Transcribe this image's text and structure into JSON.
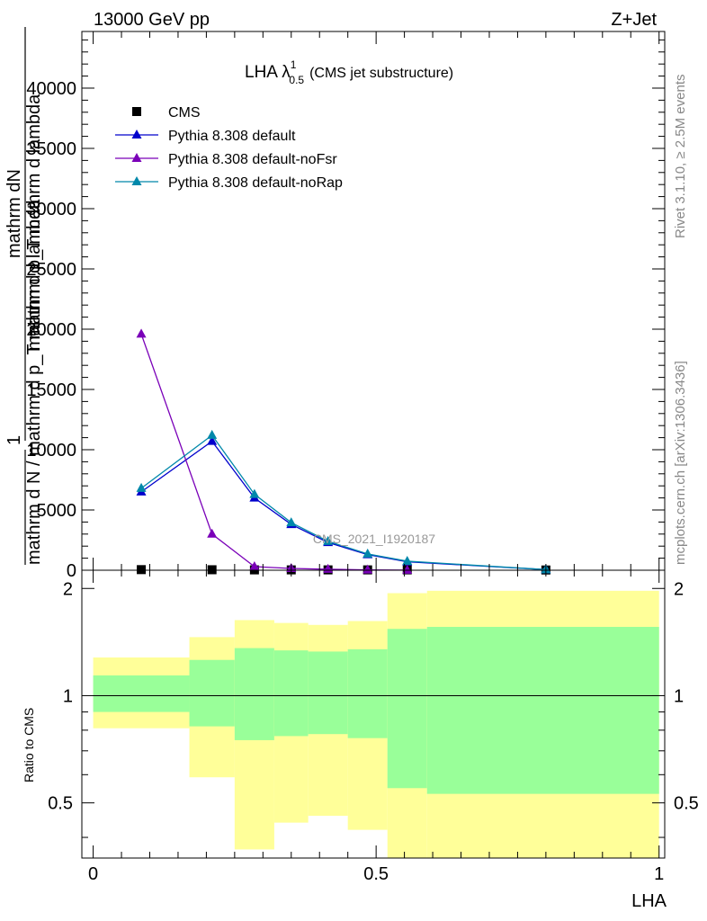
{
  "header": {
    "left": "13000 GeV pp",
    "right": "Z+Jet"
  },
  "side_texts": {
    "rivet": "Rivet 3.1.10, ≥ 2.5M events",
    "mcplots": "mcplots.cern.ch [arXiv:1306.3436]"
  },
  "chart_data": [
    {
      "type": "line",
      "title_main": "LHA λ",
      "title_sup": "1",
      "title_sub": "0.5",
      "title_rest": "(CMS jet substructure)",
      "watermark": "CMS_2021_I1920187",
      "ylabel_numerator": "mathrm dN",
      "ylabel_overlap": "mathrm d p_T mathrm d lambda",
      "ylabel_lower": "mathrm d N / mathrm d p_T mathrm d lambda",
      "ylabel_one": "1",
      "xlim": [
        -0.02,
        1.01
      ],
      "ylim": [
        0,
        44700
      ],
      "yticks": [
        0,
        5000,
        10000,
        15000,
        20000,
        25000,
        30000,
        35000,
        40000
      ],
      "ytick_labels": [
        "0",
        "5000",
        "10000",
        "15000",
        "20000",
        "25000",
        "30000",
        "35000",
        "40000"
      ],
      "legend_position": "top-left",
      "series": [
        {
          "name": "CMS",
          "color": "#000000",
          "marker": "square",
          "x": [
            0.085,
            0.21,
            0.285,
            0.35,
            0.415,
            0.485,
            0.555,
            0.8
          ],
          "y": [
            50,
            40,
            30,
            30,
            30,
            30,
            30,
            20
          ]
        },
        {
          "name": "Pythia 8.308 default",
          "color": "#0000cc",
          "marker": "triangle",
          "x": [
            0.085,
            0.21,
            0.285,
            0.35,
            0.415,
            0.485,
            0.555,
            0.8
          ],
          "y": [
            6500,
            10700,
            6000,
            3800,
            2300,
            1300,
            700,
            50
          ]
        },
        {
          "name": "Pythia 8.308 default-noFsr",
          "color": "#7a00b8",
          "marker": "triangle",
          "x": [
            0.085,
            0.21,
            0.285,
            0.35,
            0.415,
            0.485,
            0.555
          ],
          "y": [
            19600,
            3000,
            300,
            150,
            80,
            30,
            10
          ]
        },
        {
          "name": "Pythia 8.308 default-noRap",
          "color": "#0088aa",
          "marker": "triangle",
          "x": [
            0.085,
            0.21,
            0.285,
            0.35,
            0.415,
            0.485,
            0.555,
            0.8
          ],
          "y": [
            6800,
            11200,
            6300,
            3950,
            2400,
            1350,
            750,
            50
          ]
        }
      ]
    },
    {
      "type": "area",
      "xlabel": "LHA",
      "ylabel": "Ratio to CMS",
      "xlim": [
        -0.02,
        1.01
      ],
      "ylim": [
        0.35,
        2.25
      ],
      "log_y": true,
      "reference_line": 1,
      "yticks": [
        0.5,
        1,
        2
      ],
      "ytick_labels": [
        "0.5",
        "1",
        "2"
      ],
      "xticks": [
        0,
        0.5,
        1
      ],
      "xtick_labels": [
        "0",
        "0.5",
        "1"
      ],
      "bins": [
        {
          "x0": 0.0,
          "x1": 0.17,
          "inner_lo": 0.9,
          "inner_hi": 1.14,
          "outer_lo": 0.81,
          "outer_hi": 1.28
        },
        {
          "x0": 0.17,
          "x1": 0.25,
          "inner_lo": 0.82,
          "inner_hi": 1.26,
          "outer_lo": 0.59,
          "outer_hi": 1.46
        },
        {
          "x0": 0.25,
          "x1": 0.32,
          "inner_lo": 0.75,
          "inner_hi": 1.36,
          "outer_lo": 0.37,
          "outer_hi": 1.63
        },
        {
          "x0": 0.32,
          "x1": 0.38,
          "inner_lo": 0.77,
          "inner_hi": 1.34,
          "outer_lo": 0.44,
          "outer_hi": 1.6
        },
        {
          "x0": 0.38,
          "x1": 0.45,
          "inner_lo": 0.78,
          "inner_hi": 1.33,
          "outer_lo": 0.46,
          "outer_hi": 1.58
        },
        {
          "x0": 0.45,
          "x1": 0.52,
          "inner_lo": 0.76,
          "inner_hi": 1.35,
          "outer_lo": 0.42,
          "outer_hi": 1.62
        },
        {
          "x0": 0.52,
          "x1": 0.59,
          "inner_lo": 0.55,
          "inner_hi": 1.54,
          "outer_lo": 0.35,
          "outer_hi": 1.94
        },
        {
          "x0": 0.59,
          "x1": 1.0,
          "inner_lo": 0.53,
          "inner_hi": 1.56,
          "outer_lo": 0.35,
          "outer_hi": 1.97
        }
      ],
      "colors": {
        "inner": "#99ff99",
        "outer": "#ffff99"
      }
    }
  ]
}
